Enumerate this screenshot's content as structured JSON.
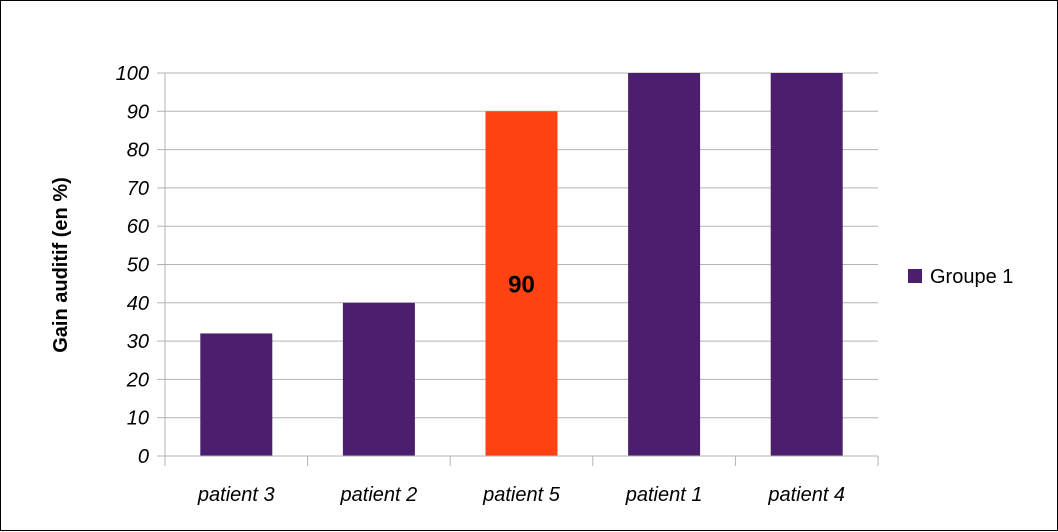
{
  "chart_data": {
    "type": "bar",
    "categories": [
      "patient 3",
      "patient 2",
      "patient 5",
      "patient 1",
      "patient 4"
    ],
    "series": [
      {
        "name": "Groupe 1",
        "values": [
          32,
          40,
          90,
          100,
          100
        ]
      }
    ],
    "bar_colors": [
      "#4b1f6e",
      "#4b1f6e",
      "#ff4211",
      "#4b1f6e",
      "#4b1f6e"
    ],
    "series_color": "#4b1f6e",
    "data_labels": [
      {
        "category": "patient 5",
        "text": "90"
      }
    ],
    "title": "",
    "xlabel": "",
    "ylabel": "Gain auditif (en %)",
    "ylim": [
      0,
      100
    ],
    "yticks": [
      0,
      10,
      20,
      30,
      40,
      50,
      60,
      70,
      80,
      90,
      100
    ],
    "grid": true,
    "legend_position": "right"
  }
}
